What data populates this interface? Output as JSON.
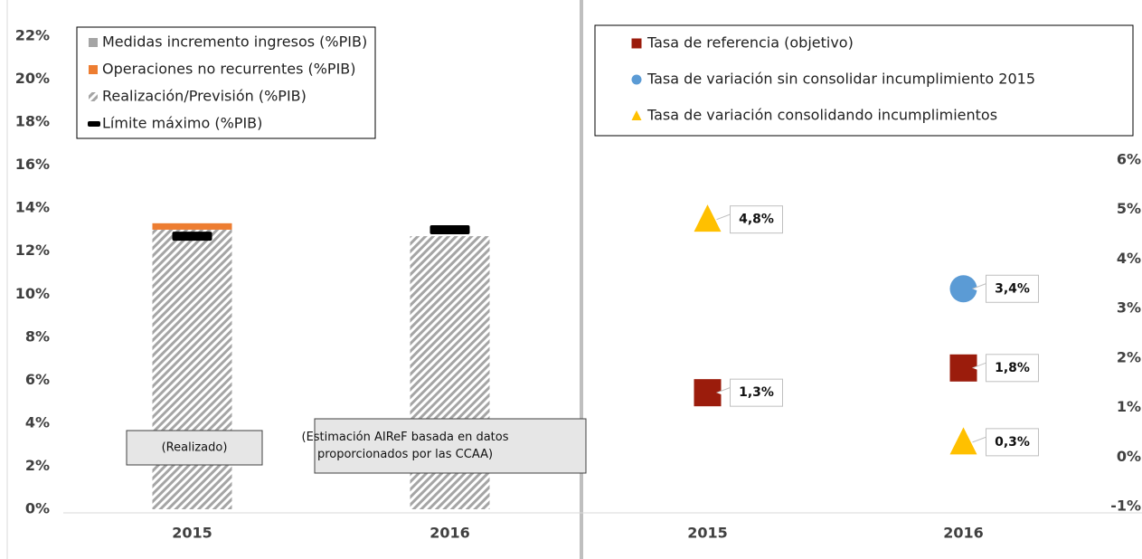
{
  "chart_data": [
    {
      "type": "bar",
      "categories": [
        "2015",
        "2016"
      ],
      "series": [
        {
          "name": "Medidas incremento ingresos (%PIB)",
          "color": "#a5a5a5",
          "kind": "bar",
          "values": [
            0,
            0
          ]
        },
        {
          "name": "Operaciones no recurrentes (%PIB)",
          "color": "#ed7d31",
          "kind": "bar",
          "values": [
            0.3,
            0
          ]
        },
        {
          "name": "Realización/Previsión (%PIB)",
          "color": "#a5a5a5",
          "kind": "bar",
          "hatch": true,
          "values": [
            13.0,
            12.7
          ]
        },
        {
          "name": "Límite máximo (%PIB)",
          "color": "#000000",
          "kind": "marker",
          "values": [
            12.7,
            13.0
          ]
        }
      ],
      "annotations": [
        {
          "lines": [
            "(Realizado)"
          ]
        },
        {
          "lines": [
            "(Estimación AIReF basada en datos",
            "proporcionados por las CCAA)"
          ]
        }
      ],
      "ylim": [
        0,
        22
      ],
      "yticks": [
        {
          "value": 0,
          "label": "0%"
        },
        {
          "value": 2,
          "label": "2%"
        },
        {
          "value": 4,
          "label": "4%"
        },
        {
          "value": 6,
          "label": "6%"
        },
        {
          "value": 8,
          "label": "8%"
        },
        {
          "value": 10,
          "label": "10%"
        },
        {
          "value": 12,
          "label": "12%"
        },
        {
          "value": 14,
          "label": "14%"
        },
        {
          "value": 16,
          "label": "16%"
        },
        {
          "value": 18,
          "label": "18%"
        },
        {
          "value": 20,
          "label": "20%"
        },
        {
          "value": 22,
          "label": "22%"
        }
      ]
    },
    {
      "type": "scatter",
      "categories": [
        "2015",
        "2016"
      ],
      "series": [
        {
          "name": "Tasa de referencia (objetivo)",
          "color": "#9b1c0c",
          "marker": "square",
          "axis": "y2",
          "values": [
            1.3,
            1.8
          ],
          "value_labels": [
            "1,3%",
            "1,8%"
          ]
        },
        {
          "name": "Tasa de variación sin consolidar incumplimiento 2015",
          "color": "#5b9bd5",
          "marker": "circle",
          "axis": "y2",
          "values": [
            null,
            3.4
          ],
          "value_labels": [
            null,
            "3,4%"
          ]
        },
        {
          "name": "Tasa de variación consolidando incumplimientos",
          "color": "#ffc000",
          "marker": "triangle",
          "axis": "y2",
          "values": [
            4.8,
            0.3
          ],
          "value_labels": [
            "4,8%",
            "0,3%"
          ]
        }
      ],
      "y2lim": [
        -1,
        6
      ],
      "y2ticks": [
        {
          "value": -1,
          "label": "-1%"
        },
        {
          "value": 0,
          "label": "0%"
        },
        {
          "value": 1,
          "label": "1%"
        },
        {
          "value": 2,
          "label": "2%"
        },
        {
          "value": 3,
          "label": "3%"
        },
        {
          "value": 4,
          "label": "4%"
        },
        {
          "value": 5,
          "label": "5%"
        },
        {
          "value": 6,
          "label": "6%"
        }
      ]
    }
  ]
}
